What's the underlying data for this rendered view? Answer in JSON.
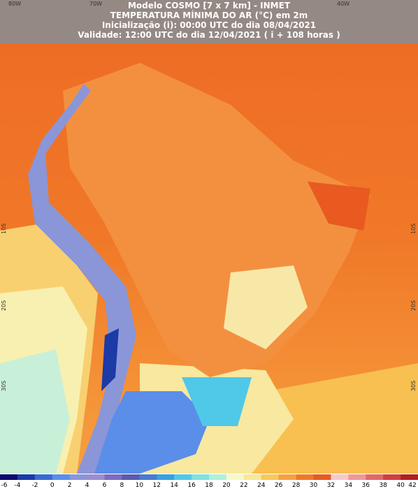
{
  "header": {
    "lines": [
      "Modelo COSMO [7 x 7 km] - INMET",
      "TEMPERATURA MÍNIMA DO AR (°C) em 2m",
      "Inicialização (i): 00:00 UTC do dia 08/04/2021",
      "Validade: 12:00 UTC do dia 12/04/2021 ( i + 108 horas )"
    ]
  },
  "lon_labels": [
    "80W",
    "70W",
    "40W"
  ],
  "lat_labels_left": [
    "10S",
    "20S",
    "30S"
  ],
  "lat_labels_right": [
    "10S",
    "20S",
    "30S"
  ],
  "colorbar": {
    "ticks": [
      -6,
      -4,
      -2,
      0,
      2,
      4,
      6,
      8,
      10,
      12,
      14,
      16,
      18,
      20,
      22,
      24,
      26,
      28,
      30,
      32,
      34,
      36,
      38,
      40,
      42
    ],
    "colors": [
      "#0c0c6e",
      "#1c3aa8",
      "#3a6ad0",
      "#5a8ee8",
      "#8a96d8",
      "#9a8cd0",
      "#7c6cc0",
      "#5a5ab0",
      "#4a7ad0",
      "#3aa0e0",
      "#50c8e8",
      "#80e0e0",
      "#b0f0d8",
      "#f8f8c8",
      "#f8e898",
      "#f8c858",
      "#f8a040",
      "#f07828",
      "#e85a20",
      "#f8c8c8",
      "#f09898",
      "#e06868",
      "#d04040",
      "#b02020",
      "#801010"
    ]
  }
}
